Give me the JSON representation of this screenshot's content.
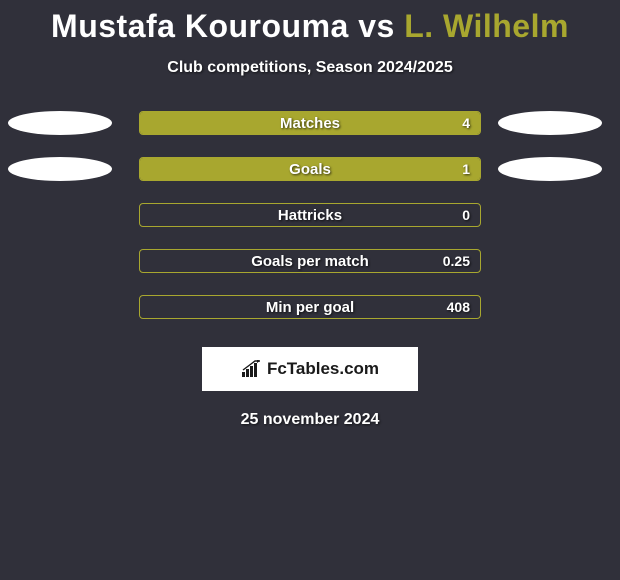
{
  "title": {
    "player1": "Mustafa Kourouma",
    "vs": "vs",
    "player2": "L. Wilhelm",
    "p1_color": "#ffffff",
    "p2_color": "#a8a72f"
  },
  "subtitle": "Club competitions, Season 2024/2025",
  "bar_style": {
    "track_width": 342,
    "track_height": 24,
    "border_color": "#a8a72f",
    "fill_left_color": "#ffffff",
    "fill_right_color": "#a8a72f",
    "label_color": "#ffffff",
    "label_fontsize": 15
  },
  "ellipse_style": {
    "width": 104,
    "height": 24,
    "left_color": "#ffffff",
    "right_color": "#ffffff"
  },
  "rows": [
    {
      "label": "Matches",
      "value": "4",
      "left_pct": 0,
      "right_pct": 100,
      "show_left_ellipse": true,
      "show_right_ellipse": true
    },
    {
      "label": "Goals",
      "value": "1",
      "left_pct": 0,
      "right_pct": 100,
      "show_left_ellipse": true,
      "show_right_ellipse": true
    },
    {
      "label": "Hattricks",
      "value": "0",
      "left_pct": 0,
      "right_pct": 0,
      "show_left_ellipse": false,
      "show_right_ellipse": false
    },
    {
      "label": "Goals per match",
      "value": "0.25",
      "left_pct": 0,
      "right_pct": 0,
      "show_left_ellipse": false,
      "show_right_ellipse": false
    },
    {
      "label": "Min per goal",
      "value": "408",
      "left_pct": 0,
      "right_pct": 0,
      "show_left_ellipse": false,
      "show_right_ellipse": false
    }
  ],
  "logo": {
    "text": "FcTables.com"
  },
  "date": "25 november 2024",
  "background_color": "#30303a"
}
